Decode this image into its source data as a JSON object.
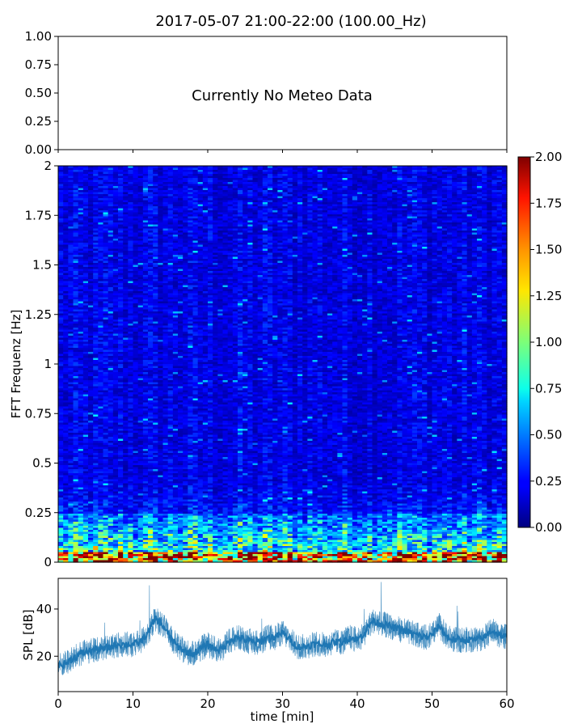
{
  "title": "2017-05-07 21:00-22:00 (100.00_Hz)",
  "chart_data": [
    {
      "type": "line",
      "panel": "meteo",
      "annotation": "Currently No Meteo Data",
      "ylim": [
        0,
        1
      ],
      "yticks": [
        "0.00",
        "0.25",
        "0.50",
        "0.75",
        "1.00"
      ],
      "xlim": [
        0,
        60
      ],
      "series": []
    },
    {
      "type": "heatmap",
      "panel": "spectrogram",
      "ylabel": "FFT Frequenz [Hz]",
      "ylim": [
        0,
        2
      ],
      "yticks": [
        "0",
        "0.25",
        "0.5",
        "0.75",
        "1",
        "1.25",
        "1.5",
        "1.75",
        "2"
      ],
      "xlim": [
        0,
        60
      ],
      "colormap": "jet",
      "colorbar": {
        "range": [
          0,
          2
        ],
        "ticks": [
          "0.00",
          "0.25",
          "0.50",
          "0.75",
          "1.00",
          "1.25",
          "1.50",
          "1.75",
          "2.00"
        ]
      },
      "pattern": {
        "typical_value_above_0.25Hz": 0.2,
        "typical_value_0.1_to_0.25Hz": 0.45,
        "typical_value_below_0.05Hz": 1.6
      }
    },
    {
      "type": "line",
      "panel": "spl",
      "ylabel": "SPL [dB]",
      "xlabel": "time [min]",
      "xlim": [
        0,
        60
      ],
      "ylim": [
        5,
        53
      ],
      "xticks": [
        "0",
        "10",
        "20",
        "30",
        "40",
        "50",
        "60"
      ],
      "yticks": [
        "20",
        "40"
      ],
      "color": "#1f77b4",
      "series": [
        {
          "x": [
            0,
            1,
            2,
            3,
            4,
            5,
            6,
            7,
            8,
            9,
            10,
            11,
            12,
            13,
            14,
            15,
            16,
            17,
            18,
            19,
            20,
            21,
            22,
            23,
            24,
            25,
            26,
            27,
            28,
            29,
            30,
            31,
            32,
            33,
            34,
            35,
            36,
            37,
            38,
            39,
            40,
            41,
            42,
            43,
            44,
            45,
            46,
            47,
            48,
            49,
            50,
            51,
            52,
            53,
            54,
            55,
            56,
            57,
            58,
            59,
            60
          ],
          "y": [
            16,
            17,
            19,
            21,
            22,
            23,
            23,
            24,
            25,
            25,
            25,
            26,
            30,
            36,
            33,
            28,
            24,
            22,
            21,
            23,
            25,
            23,
            23,
            27,
            28,
            27,
            26,
            26,
            28,
            28,
            30,
            27,
            24,
            24,
            25,
            25,
            25,
            26,
            26,
            28,
            27,
            30,
            35,
            34,
            33,
            32,
            31,
            30,
            29,
            28,
            29,
            33,
            28,
            27,
            27,
            27,
            27,
            28,
            31,
            29,
            28
          ]
        }
      ]
    }
  ]
}
